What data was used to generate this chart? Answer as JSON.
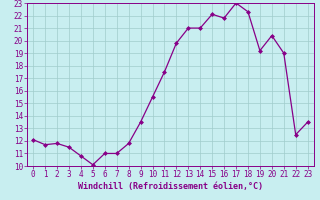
{
  "x": [
    0,
    1,
    2,
    3,
    4,
    5,
    6,
    7,
    8,
    9,
    10,
    11,
    12,
    13,
    14,
    15,
    16,
    17,
    18,
    19,
    20,
    21,
    22,
    23
  ],
  "y": [
    12.1,
    11.7,
    11.8,
    11.5,
    10.8,
    10.1,
    11.0,
    11.0,
    11.8,
    13.5,
    15.5,
    17.5,
    19.8,
    21.0,
    21.0,
    22.1,
    21.8,
    23.0,
    22.3,
    19.2,
    20.4,
    19.0,
    12.5,
    13.5
  ],
  "ylim_min": 10,
  "ylim_max": 23,
  "xlim_min": -0.5,
  "xlim_max": 23.5,
  "yticks": [
    10,
    11,
    12,
    13,
    14,
    15,
    16,
    17,
    18,
    19,
    20,
    21,
    22,
    23
  ],
  "xticks": [
    0,
    1,
    2,
    3,
    4,
    5,
    6,
    7,
    8,
    9,
    10,
    11,
    12,
    13,
    14,
    15,
    16,
    17,
    18,
    19,
    20,
    21,
    22,
    23
  ],
  "xlabel": "Windchill (Refroidissement éolien,°C)",
  "line_color": "#880088",
  "marker": "D",
  "marker_size": 2.0,
  "bg_color": "#c8eef0",
  "grid_color": "#a0cccc",
  "tick_label_fontsize": 5.5,
  "xlabel_fontsize": 6.0
}
